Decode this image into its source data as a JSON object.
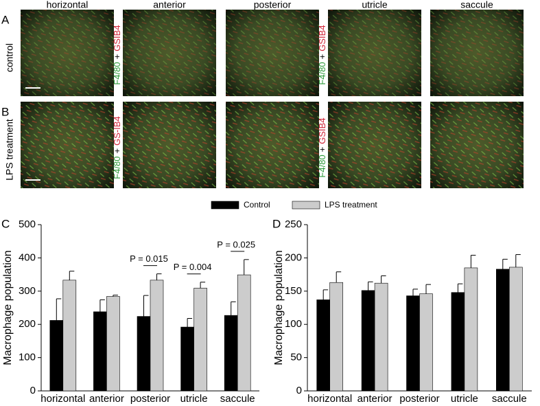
{
  "image_grid": {
    "columns": [
      "horizontal",
      "anterior",
      "posterior",
      "utricle",
      "saccule"
    ],
    "rows": [
      {
        "letter": "A",
        "label": "control"
      },
      {
        "letter": "B",
        "label": "LPS treatment"
      }
    ],
    "stains": [
      {
        "green": "F4/80",
        "plus": "+",
        "red": "GSIB4"
      },
      {
        "green": "F4/80",
        "plus": "+",
        "red": "GSIB4"
      },
      {
        "green": "F4/80",
        "plus": "+",
        "red": "GS-IB4"
      },
      {
        "green": "F4/80",
        "plus": "+",
        "red": "GSIB4"
      }
    ]
  },
  "chart_data": [
    {
      "type": "bar",
      "panel": "C",
      "ylabel": "Macrophage population",
      "categories": [
        "horizontal",
        "anterior",
        "posterior",
        "utricle",
        "saccule"
      ],
      "series": [
        {
          "name": "Control",
          "color": "#000000",
          "values": [
            212,
            238,
            224,
            192,
            227
          ],
          "errors": [
            65,
            36,
            63,
            26,
            41
          ]
        },
        {
          "name": "LPS treatment",
          "color": "#cccccc",
          "values": [
            333,
            284,
            333,
            309,
            349
          ],
          "errors": [
            27,
            4,
            19,
            18,
            46
          ]
        }
      ],
      "ylim": [
        0,
        500
      ],
      "yticks": [
        0,
        100,
        200,
        300,
        400,
        500
      ],
      "annotations": [
        "P = 0.015",
        "P = 0.004",
        "P = 0.025"
      ]
    },
    {
      "type": "bar",
      "panel": "D",
      "ylabel": "Macrophage population",
      "categories": [
        "horizontal",
        "anterior",
        "posterior",
        "utricle",
        "saccule"
      ],
      "series": [
        {
          "color": "#000000",
          "values": [
            137,
            151,
            143,
            148,
            183
          ],
          "errors": [
            15,
            13,
            10,
            13,
            15
          ]
        },
        {
          "color": "#cccccc",
          "values": [
            163,
            162,
            146,
            185,
            186
          ],
          "errors": [
            16,
            11,
            14,
            19,
            19
          ]
        }
      ],
      "ylim": [
        0,
        250
      ],
      "yticks": [
        0,
        50,
        100,
        150,
        200,
        250
      ]
    }
  ]
}
